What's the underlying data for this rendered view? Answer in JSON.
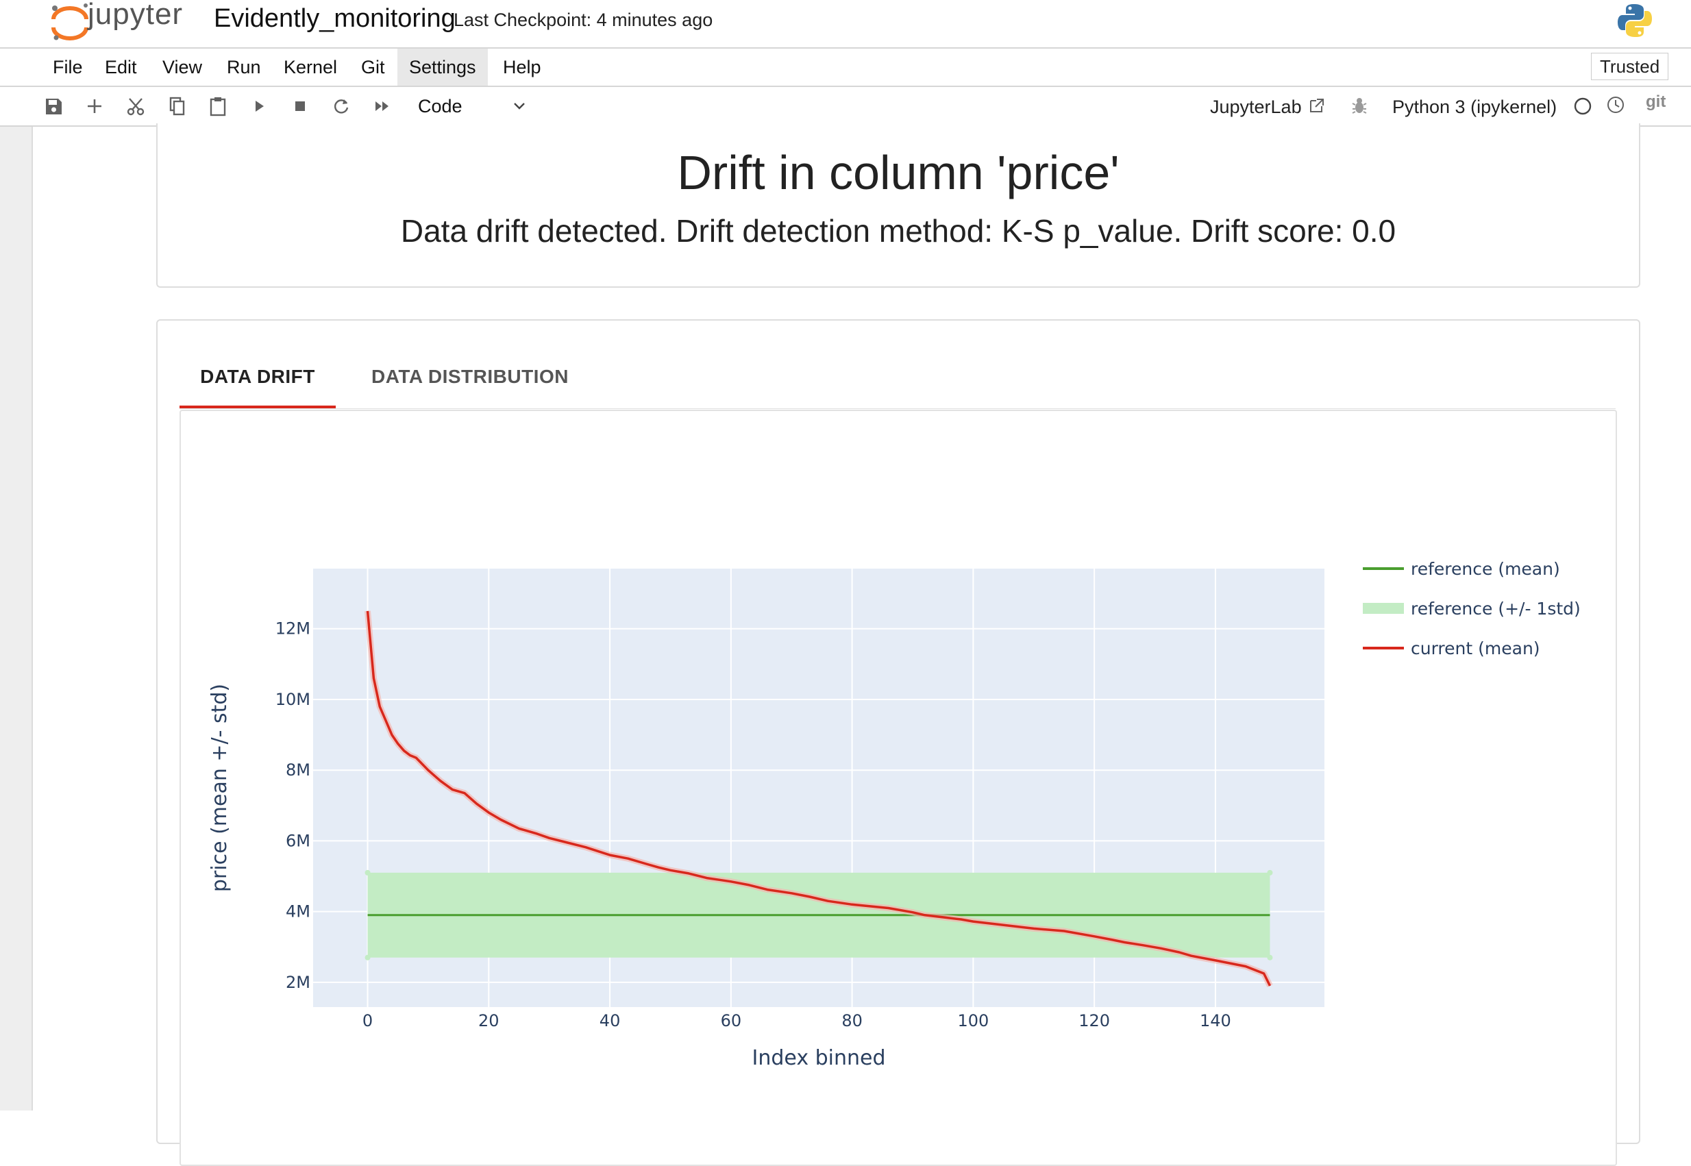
{
  "app": {
    "logo_text": "jupyter",
    "notebook_name": "Evidently_monitoring",
    "checkpoint": "Last Checkpoint: 4 minutes ago"
  },
  "menu": {
    "items": [
      "File",
      "Edit",
      "View",
      "Run",
      "Kernel",
      "Git",
      "Settings",
      "Help"
    ],
    "active": "Settings",
    "trusted": "Trusted"
  },
  "toolbar": {
    "icons": [
      "save-icon",
      "add-cell-icon",
      "cut-icon",
      "copy-icon",
      "paste-icon",
      "run-icon",
      "stop-icon",
      "restart-icon",
      "run-all-icon"
    ],
    "cell_type": "Code",
    "jupyterlab_label": "JupyterLab",
    "kernel_label": "Python 3 (ipykernel)",
    "git_label": "git"
  },
  "report": {
    "title": "Drift in column 'price'",
    "subtitle": "Data drift detected. Drift detection method: K-S p_value. Drift score: 0.0",
    "tabs": [
      "DATA DRIFT",
      "DATA DISTRIBUTION"
    ],
    "active_tab": "DATA DRIFT"
  },
  "colors": {
    "accent_red": "#d8281c",
    "reference_green": "#4a9e2f",
    "reference_band": "#c3ecc4",
    "plot_bg": "#e5ecf6"
  },
  "chart_data": {
    "type": "line",
    "title": "",
    "xlabel": "Index binned",
    "ylabel": "price (mean +/- std)",
    "xlim": [
      -9,
      158
    ],
    "ylim": [
      1.3,
      13.7
    ],
    "y_unit_suffix": "M",
    "x_ticks": [
      0,
      20,
      40,
      60,
      80,
      100,
      120,
      140
    ],
    "y_ticks": [
      2,
      4,
      6,
      8,
      10,
      12
    ],
    "x_tick_labels": [
      "0",
      "20",
      "40",
      "60",
      "80",
      "100",
      "120",
      "140"
    ],
    "y_tick_labels": [
      "2M",
      "4M",
      "6M",
      "8M",
      "10M",
      "12M"
    ],
    "grid": true,
    "legend_position": "right",
    "series": [
      {
        "name": "reference (mean)",
        "kind": "line",
        "x": [
          0,
          149
        ],
        "y": [
          3.9,
          3.9
        ]
      },
      {
        "name": "reference (+/- 1std)",
        "kind": "band",
        "x": [
          0,
          149
        ],
        "lower": [
          2.7,
          2.7
        ],
        "upper": [
          5.1,
          5.1
        ]
      },
      {
        "name": "current (mean)",
        "kind": "line",
        "x": [
          0,
          1,
          2,
          3,
          4,
          5,
          6,
          7,
          8,
          10,
          12,
          14,
          16,
          18,
          20,
          22,
          25,
          28,
          30,
          33,
          36,
          40,
          43,
          46,
          48,
          50,
          53,
          56,
          58,
          60,
          63,
          66,
          70,
          73,
          76,
          80,
          83,
          86,
          90,
          92,
          95,
          98,
          100,
          105,
          110,
          115,
          120,
          123,
          125,
          128,
          131,
          134,
          136,
          140,
          145,
          148,
          149
        ],
        "y": [
          12.5,
          10.6,
          9.8,
          9.4,
          9.0,
          8.75,
          8.55,
          8.42,
          8.35,
          8.0,
          7.7,
          7.45,
          7.35,
          7.05,
          6.8,
          6.6,
          6.35,
          6.2,
          6.08,
          5.95,
          5.82,
          5.6,
          5.5,
          5.35,
          5.25,
          5.17,
          5.08,
          4.95,
          4.9,
          4.85,
          4.75,
          4.62,
          4.52,
          4.42,
          4.3,
          4.2,
          4.15,
          4.1,
          3.98,
          3.9,
          3.84,
          3.78,
          3.72,
          3.62,
          3.52,
          3.45,
          3.3,
          3.2,
          3.13,
          3.05,
          2.96,
          2.85,
          2.75,
          2.62,
          2.45,
          2.25,
          1.9
        ]
      }
    ]
  }
}
